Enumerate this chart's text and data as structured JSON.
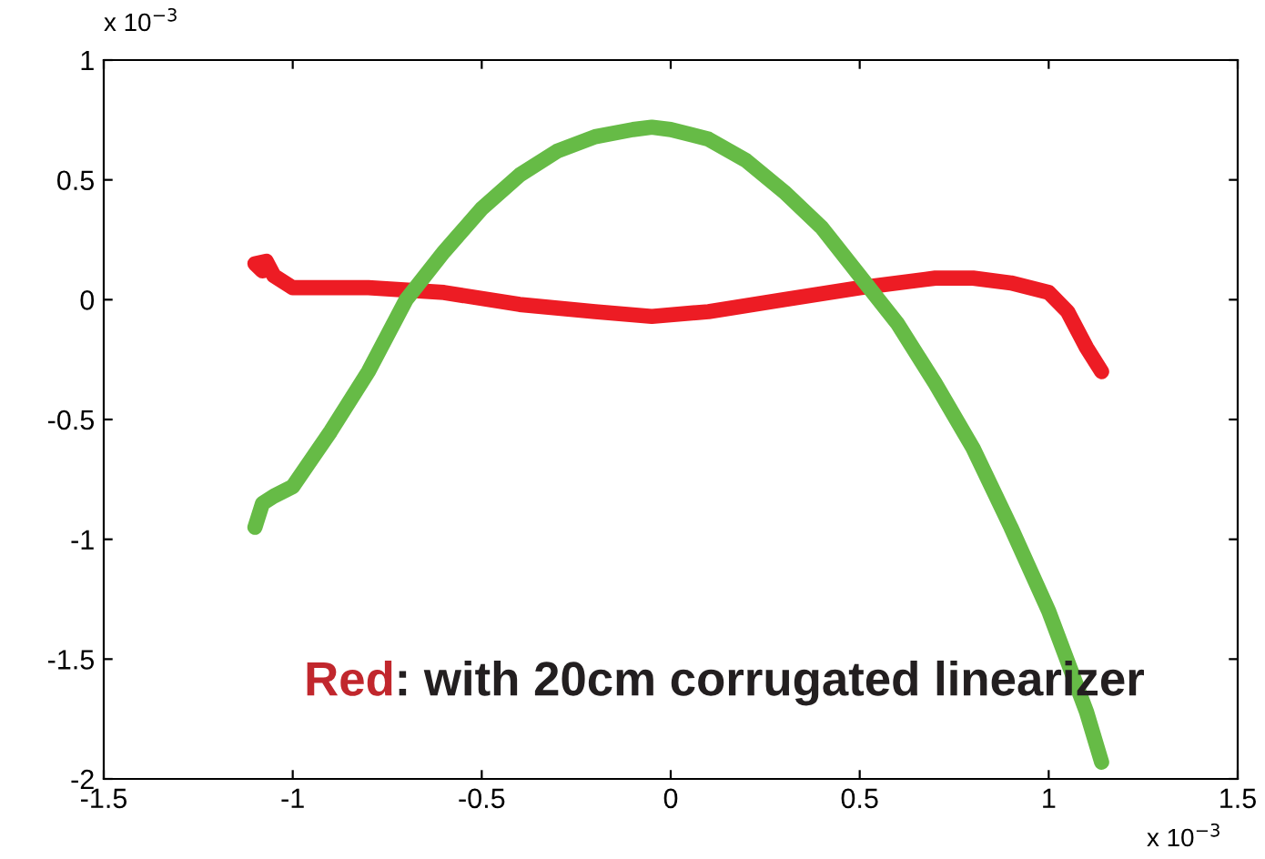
{
  "chart_data": {
    "type": "line",
    "xlim": [
      -1.5,
      1.5
    ],
    "ylim": [
      -2,
      1
    ],
    "xticks": [
      -1.5,
      -1,
      -0.5,
      0,
      0.5,
      1,
      1.5
    ],
    "yticks": [
      -2,
      -1.5,
      -1,
      -0.5,
      0,
      0.5,
      1
    ],
    "grid": false,
    "legend": false,
    "marker": "none",
    "line_style": "solid",
    "annotations": [
      "x 10$^{−3}$",
      "x 10$^{−3}$",
      "Red",
      ": with 20cm corrugated linearizer"
    ],
    "series": [
      {
        "color": "#ed1c24",
        "x": [
          -1.08,
          -1.1,
          -1.07,
          -1.05,
          -1.0,
          -0.8,
          -0.6,
          -0.4,
          -0.2,
          -0.05,
          0.1,
          0.3,
          0.5,
          0.7,
          0.8,
          0.9,
          1.0,
          1.05,
          1.1,
          1.14
        ],
        "values": [
          0.12,
          0.15,
          0.16,
          0.1,
          0.05,
          0.05,
          0.03,
          -0.02,
          -0.05,
          -0.07,
          -0.05,
          0.0,
          0.05,
          0.09,
          0.09,
          0.07,
          0.03,
          -0.05,
          -0.2,
          -0.3
        ]
      },
      {
        "color": "#66bb46",
        "x": [
          -1.1,
          -1.08,
          -1.05,
          -1.0,
          -0.9,
          -0.8,
          -0.7,
          -0.6,
          -0.5,
          -0.4,
          -0.3,
          -0.2,
          -0.1,
          -0.05,
          0,
          0.1,
          0.2,
          0.3,
          0.4,
          0.5,
          0.55,
          0.6,
          0.7,
          0.8,
          0.9,
          1.0,
          1.1,
          1.14
        ],
        "values": [
          -0.95,
          -0.85,
          -0.82,
          -0.78,
          -0.55,
          -0.3,
          0.0,
          0.2,
          0.38,
          0.52,
          0.62,
          0.68,
          0.71,
          0.72,
          0.71,
          0.67,
          0.58,
          0.45,
          0.3,
          0.1,
          0.0,
          -0.1,
          -0.35,
          -0.62,
          -0.95,
          -1.3,
          -1.72,
          -1.93
        ]
      }
    ]
  }
}
